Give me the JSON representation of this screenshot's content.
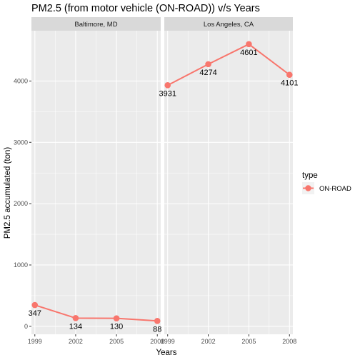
{
  "chart_data": {
    "type": "line",
    "title": "PM2.5 (from motor vehicle (ON-ROAD)) v/s Years",
    "xlabel": "Years",
    "ylabel": "PM2.5 accumulated (ton)",
    "x": [
      1999,
      2002,
      2005,
      2008
    ],
    "x_tick_labels": [
      "1999",
      "2002",
      "2005",
      "2008"
    ],
    "y_ticks": [
      0,
      1000,
      2000,
      3000,
      4000
    ],
    "y_tick_labels": [
      "0",
      "1000",
      "2000",
      "3000",
      "4000"
    ],
    "ylim": [
      -130,
      4820
    ],
    "xlim": [
      1998.75,
      2008.25
    ],
    "grid": true,
    "facets": [
      {
        "name": "Baltimore, MD",
        "values": [
          347,
          134,
          130,
          88
        ],
        "labels": [
          "347",
          "134",
          "130",
          "88"
        ]
      },
      {
        "name": "Los Angeles, CA",
        "values": [
          3931,
          4274,
          4601,
          4101
        ],
        "labels": [
          "3931",
          "4274",
          "4601",
          "4101"
        ]
      }
    ],
    "legend": {
      "title": "type",
      "position": "right",
      "entries": [
        {
          "name": "ON-ROAD",
          "color": "#F8766D"
        }
      ]
    },
    "colors": {
      "series": "#F8766D",
      "panel_bg": "#EBEBEB",
      "strip_bg": "#D9D9D9",
      "grid": "#FFFFFF"
    }
  }
}
